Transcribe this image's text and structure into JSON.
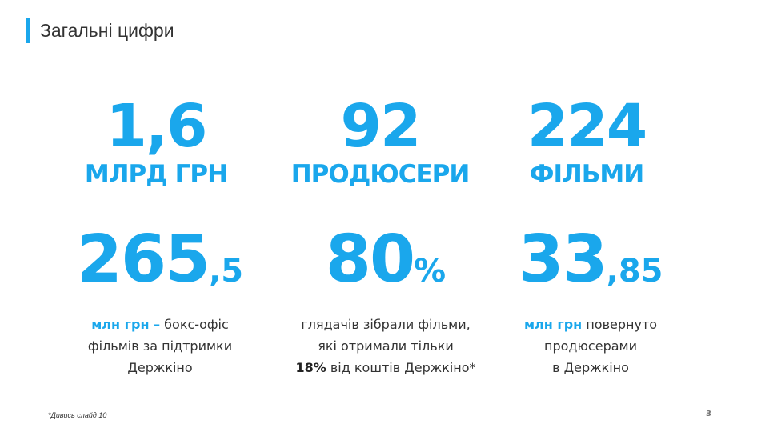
{
  "header": {
    "title": "Загальні цифри"
  },
  "stats": [
    {
      "number": "1,6",
      "unit": "МЛРД ГРН"
    },
    {
      "number": "92",
      "unit": "ПРОДЮСЕРИ"
    },
    {
      "number": "224",
      "unit": "ФІЛЬМИ"
    },
    {
      "number": "265",
      "suffix": ",5",
      "note": [
        "млн грн –",
        "бокс-офіс",
        "фільмів за підтримки",
        "Держкіно"
      ]
    },
    {
      "number": "80",
      "suffix": "%",
      "note": [
        "глядачів зібрали фільми,",
        "які отримали тільки",
        "18%",
        "від коштів Держкіно*"
      ]
    },
    {
      "number": "33",
      "suffix": ",85",
      "note": [
        "млн грн",
        "повернуто",
        "продюсерами",
        "в Держкіно"
      ]
    }
  ],
  "footer": {
    "footnote": "*Дивись слайд 10",
    "page": "3"
  }
}
